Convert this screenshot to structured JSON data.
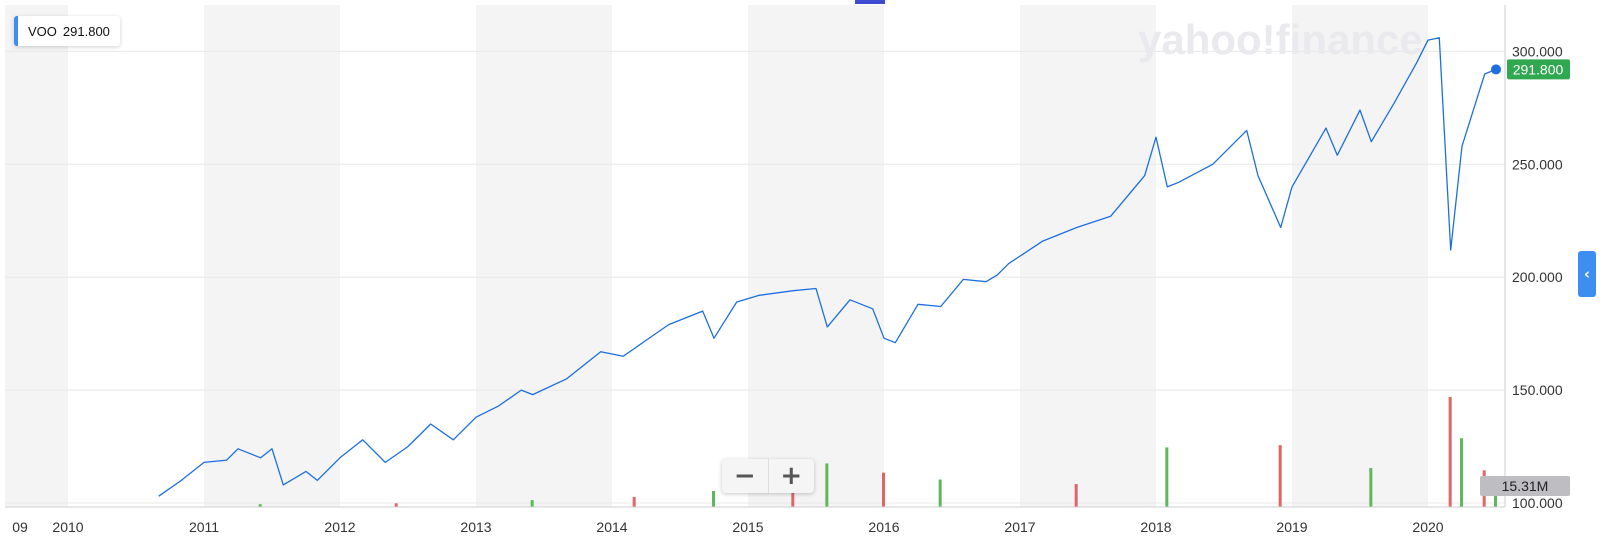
{
  "legend": {
    "symbol": "VOO",
    "value": "291.800"
  },
  "watermark": "yahoo!finance",
  "last_price_label": "291.800",
  "volume_label": "15.31M",
  "zoom": {
    "out_icon": "minus-icon",
    "in_icon": "plus-icon"
  },
  "side_toggle_icon": "chevron-left-icon",
  "colors": {
    "line": "#1d6fe0",
    "up_bar": "#5cb85c",
    "down_bar": "#e06666",
    "price_badge": "#2fa84f",
    "accent": "#3c8ef0"
  },
  "chart_data": {
    "type": "line",
    "series": [
      {
        "name": "VOO",
        "points": [
          [
            "2010-09",
            103
          ],
          [
            "2010-11",
            110
          ],
          [
            "2011-01",
            118
          ],
          [
            "2011-03",
            119
          ],
          [
            "2011-04",
            124
          ],
          [
            "2011-06",
            120
          ],
          [
            "2011-07",
            124
          ],
          [
            "2011-08",
            108
          ],
          [
            "2011-10",
            114
          ],
          [
            "2011-11",
            110
          ],
          [
            "2012-01",
            120
          ],
          [
            "2012-03",
            128
          ],
          [
            "2012-05",
            118
          ],
          [
            "2012-07",
            125
          ],
          [
            "2012-09",
            135
          ],
          [
            "2012-11",
            128
          ],
          [
            "2013-01",
            138
          ],
          [
            "2013-03",
            143
          ],
          [
            "2013-05",
            150
          ],
          [
            "2013-06",
            148
          ],
          [
            "2013-09",
            155
          ],
          [
            "2013-12",
            167
          ],
          [
            "2014-02",
            165
          ],
          [
            "2014-04",
            172
          ],
          [
            "2014-06",
            179
          ],
          [
            "2014-09",
            185
          ],
          [
            "2014-10",
            173
          ],
          [
            "2014-12",
            189
          ],
          [
            "2015-02",
            192
          ],
          [
            "2015-05",
            194
          ],
          [
            "2015-07",
            195
          ],
          [
            "2015-08",
            178
          ],
          [
            "2015-10",
            190
          ],
          [
            "2015-12",
            186
          ],
          [
            "2016-01",
            173
          ],
          [
            "2016-02",
            171
          ],
          [
            "2016-04",
            188
          ],
          [
            "2016-06",
            187
          ],
          [
            "2016-08",
            199
          ],
          [
            "2016-10",
            198
          ],
          [
            "2016-11",
            201
          ],
          [
            "2016-12",
            206
          ],
          [
            "2017-03",
            216
          ],
          [
            "2017-06",
            222
          ],
          [
            "2017-09",
            227
          ],
          [
            "2017-12",
            245
          ],
          [
            "2018-01",
            262
          ],
          [
            "2018-02",
            240
          ],
          [
            "2018-03",
            242
          ],
          [
            "2018-06",
            250
          ],
          [
            "2018-09",
            265
          ],
          [
            "2018-10",
            245
          ],
          [
            "2018-12",
            222
          ],
          [
            "2019-01",
            240
          ],
          [
            "2019-04",
            266
          ],
          [
            "2019-05",
            254
          ],
          [
            "2019-07",
            274
          ],
          [
            "2019-08",
            260
          ],
          [
            "2019-10",
            277
          ],
          [
            "2019-12",
            295
          ],
          [
            "2020-01",
            305
          ],
          [
            "2020-02",
            306
          ],
          [
            "2020-03",
            212
          ],
          [
            "2020-04",
            258
          ],
          [
            "2020-06",
            290
          ],
          [
            "2020-07",
            292
          ]
        ]
      },
      {
        "name": "Volume",
        "type": "bar",
        "up_color": "#5cb85c",
        "down_color": "#e06666",
        "max_value": 24,
        "values": [
          [
            "2011-06",
            0.6
          ],
          [
            "2012-06",
            0.8
          ],
          [
            "2013-06",
            1.5
          ],
          [
            "2014-03",
            2.2
          ],
          [
            "2014-10",
            3.5
          ],
          [
            "2015-05",
            4.5
          ],
          [
            "2015-08",
            9.5
          ],
          [
            "2016-01",
            7.5
          ],
          [
            "2016-06",
            6.0
          ],
          [
            "2017-06",
            5.0
          ],
          [
            "2018-02",
            13.0
          ],
          [
            "2018-12",
            13.5
          ],
          [
            "2019-08",
            8.5
          ],
          [
            "2020-03",
            24.0
          ],
          [
            "2020-04",
            15.0
          ],
          [
            "2020-06",
            8.0
          ],
          [
            "2020-07",
            5.5
          ]
        ]
      }
    ],
    "x_range": [
      "2009-10",
      "2020-09"
    ],
    "y_range": [
      100,
      315
    ],
    "y_ticks": [
      "100.000",
      "150.000",
      "200.000",
      "250.000",
      "300.000"
    ],
    "x_ticks": [
      "09",
      "2010",
      "2011",
      "2012",
      "2013",
      "2014",
      "2015",
      "2016",
      "2017",
      "2018",
      "2019",
      "2020"
    ],
    "grid": true,
    "y_axis_position": "right"
  }
}
